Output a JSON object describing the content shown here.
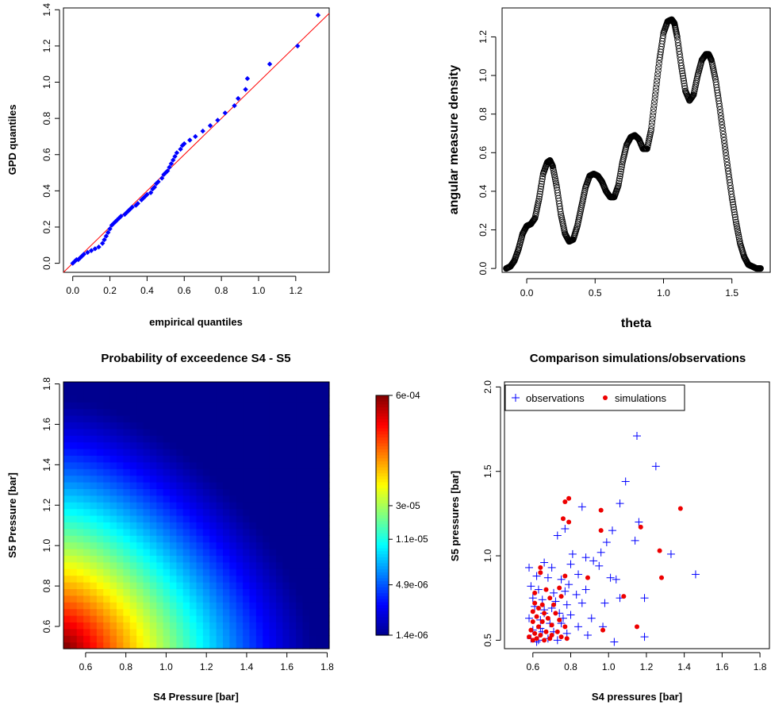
{
  "chart_data": [
    {
      "type": "scatter",
      "title": "",
      "xlabel": "empirical quantiles",
      "ylabel": "GPD quantiles",
      "xlim": [
        -0.05,
        1.38
      ],
      "ylim": [
        -0.05,
        1.41
      ],
      "x_ticks": [
        "0.0",
        "0.2",
        "0.4",
        "0.6",
        "0.8",
        "1.0",
        "1.2"
      ],
      "y_ticks": [
        "0.0",
        "0.2",
        "0.4",
        "0.6",
        "0.8",
        "1.0",
        "1.2",
        "1.4"
      ],
      "reference_line": {
        "slope": 1,
        "intercept": 0,
        "color": "#ff0000"
      },
      "point_color": "#0000ff",
      "points": [
        [
          0.0,
          0.0
        ],
        [
          0.01,
          0.01
        ],
        [
          0.02,
          0.02
        ],
        [
          0.03,
          0.02
        ],
        [
          0.04,
          0.03
        ],
        [
          0.05,
          0.04
        ],
        [
          0.06,
          0.05
        ],
        [
          0.08,
          0.06
        ],
        [
          0.1,
          0.07
        ],
        [
          0.12,
          0.08
        ],
        [
          0.14,
          0.09
        ],
        [
          0.16,
          0.11
        ],
        [
          0.17,
          0.13
        ],
        [
          0.18,
          0.15
        ],
        [
          0.19,
          0.17
        ],
        [
          0.2,
          0.19
        ],
        [
          0.21,
          0.21
        ],
        [
          0.22,
          0.22
        ],
        [
          0.23,
          0.23
        ],
        [
          0.24,
          0.24
        ],
        [
          0.25,
          0.25
        ],
        [
          0.26,
          0.26
        ],
        [
          0.28,
          0.27
        ],
        [
          0.29,
          0.28
        ],
        [
          0.3,
          0.29
        ],
        [
          0.31,
          0.3
        ],
        [
          0.32,
          0.31
        ],
        [
          0.34,
          0.32
        ],
        [
          0.35,
          0.33
        ],
        [
          0.37,
          0.35
        ],
        [
          0.38,
          0.36
        ],
        [
          0.39,
          0.37
        ],
        [
          0.4,
          0.38
        ],
        [
          0.42,
          0.39
        ],
        [
          0.43,
          0.41
        ],
        [
          0.44,
          0.42
        ],
        [
          0.45,
          0.44
        ],
        [
          0.46,
          0.45
        ],
        [
          0.48,
          0.47
        ],
        [
          0.49,
          0.49
        ],
        [
          0.5,
          0.5
        ],
        [
          0.51,
          0.51
        ],
        [
          0.52,
          0.53
        ],
        [
          0.53,
          0.55
        ],
        [
          0.54,
          0.57
        ],
        [
          0.55,
          0.59
        ],
        [
          0.56,
          0.61
        ],
        [
          0.58,
          0.63
        ],
        [
          0.59,
          0.65
        ],
        [
          0.6,
          0.66
        ],
        [
          0.63,
          0.68
        ],
        [
          0.66,
          0.7
        ],
        [
          0.7,
          0.73
        ],
        [
          0.74,
          0.76
        ],
        [
          0.78,
          0.79
        ],
        [
          0.82,
          0.83
        ],
        [
          0.87,
          0.87
        ],
        [
          0.89,
          0.91
        ],
        [
          0.93,
          0.96
        ],
        [
          0.94,
          1.02
        ],
        [
          1.06,
          1.1
        ],
        [
          1.21,
          1.2
        ],
        [
          1.32,
          1.37
        ]
      ]
    },
    {
      "type": "line",
      "title": "",
      "xlabel": "theta",
      "ylabel": "angular measure density",
      "xlim": [
        -0.18,
        1.78
      ],
      "ylim": [
        -0.02,
        1.35
      ],
      "x_ticks": [
        "0.0",
        "0.5",
        "1.0",
        "1.5"
      ],
      "y_ticks": [
        "0.0",
        "0.2",
        "0.4",
        "0.6",
        "0.8",
        "1.0",
        "1.2"
      ],
      "marker": "open-circle",
      "x": [
        -0.15,
        -0.12,
        -0.09,
        -0.06,
        -0.03,
        0.0,
        0.03,
        0.06,
        0.09,
        0.12,
        0.15,
        0.17,
        0.19,
        0.22,
        0.25,
        0.28,
        0.31,
        0.34,
        0.37,
        0.4,
        0.43,
        0.46,
        0.49,
        0.52,
        0.55,
        0.58,
        0.61,
        0.64,
        0.67,
        0.7,
        0.73,
        0.76,
        0.79,
        0.82,
        0.85,
        0.88,
        0.91,
        0.94,
        0.97,
        1.0,
        1.03,
        1.06,
        1.08,
        1.1,
        1.13,
        1.16,
        1.19,
        1.22,
        1.25,
        1.28,
        1.31,
        1.33,
        1.35,
        1.38,
        1.41,
        1.44,
        1.47,
        1.5,
        1.53,
        1.56,
        1.59,
        1.62,
        1.65,
        1.68,
        1.71
      ],
      "y": [
        0.0,
        0.01,
        0.04,
        0.1,
        0.18,
        0.22,
        0.23,
        0.26,
        0.36,
        0.49,
        0.55,
        0.56,
        0.53,
        0.42,
        0.28,
        0.18,
        0.14,
        0.15,
        0.22,
        0.32,
        0.42,
        0.48,
        0.49,
        0.48,
        0.45,
        0.4,
        0.37,
        0.37,
        0.43,
        0.55,
        0.64,
        0.68,
        0.69,
        0.67,
        0.62,
        0.62,
        0.72,
        0.9,
        1.08,
        1.22,
        1.28,
        1.29,
        1.27,
        1.2,
        1.05,
        0.92,
        0.87,
        0.9,
        1.0,
        1.08,
        1.11,
        1.11,
        1.08,
        0.98,
        0.84,
        0.68,
        0.52,
        0.37,
        0.24,
        0.13,
        0.06,
        0.02,
        0.01,
        0.0,
        0.0
      ]
    },
    {
      "type": "heatmap",
      "title": "Probability of exceedence S4 - S5",
      "xlabel": "S4 Pressure [bar]",
      "ylabel": "S5 Pressure [bar]",
      "xlim": [
        0.49,
        1.81
      ],
      "ylim": [
        0.49,
        1.81
      ],
      "x_ticks": [
        "0.6",
        "0.8",
        "1.0",
        "1.2",
        "1.4",
        "1.6",
        "1.8"
      ],
      "y_ticks": [
        "0.6",
        "0.8",
        "1.0",
        "1.2",
        "1.4",
        "1.6",
        "1.8"
      ],
      "colorbar": {
        "tick_labels": [
          "6e-04",
          "3e-05",
          "1.1e-05",
          "4.9e-06",
          "1.4e-06"
        ],
        "tick_fracs": [
          1.0,
          0.54,
          0.4,
          0.21,
          0.0
        ],
        "colors": [
          "#00008f",
          "#0000ff",
          "#0080ff",
          "#00ffff",
          "#80ff80",
          "#ffff00",
          "#ff8000",
          "#ff0000",
          "#800000"
        ]
      },
      "grid_size": 40
    },
    {
      "type": "scatter",
      "title": "Comparison simulations/observations",
      "xlabel": "S4 pressures [bar]",
      "ylabel": "S5 pressures [bar]",
      "xlim": [
        0.45,
        1.85
      ],
      "ylim": [
        0.45,
        2.03
      ],
      "x_ticks": [
        "0.6",
        "0.8",
        "1.0",
        "1.2",
        "1.4",
        "1.6",
        "1.8"
      ],
      "y_ticks": [
        "0.5",
        "1.0",
        "1.5",
        "2.0"
      ],
      "legend": {
        "position": "top-left",
        "entries": [
          "observations",
          "simulations"
        ]
      },
      "series": [
        {
          "name": "observations",
          "marker": "plus",
          "color": "#0000ff",
          "points": [
            [
              1.15,
              1.71
            ],
            [
              1.25,
              1.53
            ],
            [
              1.09,
              1.44
            ],
            [
              1.06,
              1.31
            ],
            [
              0.86,
              1.29
            ],
            [
              1.16,
              1.2
            ],
            [
              0.77,
              1.16
            ],
            [
              1.02,
              1.15
            ],
            [
              0.73,
              1.12
            ],
            [
              1.14,
              1.09
            ],
            [
              0.99,
              1.08
            ],
            [
              0.96,
              1.02
            ],
            [
              0.81,
              1.01
            ],
            [
              1.33,
              1.01
            ],
            [
              1.46,
              0.89
            ],
            [
              0.58,
              0.93
            ],
            [
              0.66,
              0.96
            ],
            [
              0.7,
              0.93
            ],
            [
              0.8,
              0.95
            ],
            [
              0.88,
              0.99
            ],
            [
              0.92,
              0.97
            ],
            [
              0.95,
              0.94
            ],
            [
              1.01,
              0.87
            ],
            [
              1.04,
              0.86
            ],
            [
              0.62,
              0.88
            ],
            [
              0.68,
              0.87
            ],
            [
              0.75,
              0.86
            ],
            [
              0.84,
              0.89
            ],
            [
              0.79,
              0.83
            ],
            [
              0.59,
              0.82
            ],
            [
              0.63,
              0.8
            ],
            [
              0.71,
              0.78
            ],
            [
              0.77,
              0.79
            ],
            [
              0.83,
              0.77
            ],
            [
              0.88,
              0.8
            ],
            [
              0.6,
              0.75
            ],
            [
              0.65,
              0.74
            ],
            [
              0.72,
              0.73
            ],
            [
              0.78,
              0.71
            ],
            [
              0.86,
              0.72
            ],
            [
              0.98,
              0.72
            ],
            [
              1.06,
              0.75
            ],
            [
              1.19,
              0.75
            ],
            [
              0.61,
              0.7
            ],
            [
              0.66,
              0.68
            ],
            [
              0.74,
              0.66
            ],
            [
              0.8,
              0.65
            ],
            [
              0.91,
              0.63
            ],
            [
              0.58,
              0.63
            ],
            [
              0.64,
              0.62
            ],
            [
              0.69,
              0.6
            ],
            [
              0.75,
              0.6
            ],
            [
              0.84,
              0.58
            ],
            [
              0.97,
              0.58
            ],
            [
              0.6,
              0.56
            ],
            [
              0.65,
              0.55
            ],
            [
              0.71,
              0.55
            ],
            [
              0.78,
              0.54
            ],
            [
              0.89,
              0.53
            ],
            [
              1.19,
              0.52
            ],
            [
              0.59,
              0.51
            ],
            [
              0.63,
              0.5
            ],
            [
              0.68,
              0.51
            ],
            [
              0.73,
              0.5
            ],
            [
              1.03,
              0.49
            ],
            [
              0.62,
              0.49
            ],
            [
              0.66,
              0.66
            ],
            [
              0.7,
              0.69
            ],
            [
              0.64,
              0.57
            ],
            [
              0.76,
              0.63
            ]
          ]
        },
        {
          "name": "simulations",
          "marker": "filled-circle",
          "color": "#ee0000",
          "points": [
            [
              0.79,
              1.34
            ],
            [
              0.77,
              1.32
            ],
            [
              1.38,
              1.28
            ],
            [
              0.96,
              1.27
            ],
            [
              0.76,
              1.22
            ],
            [
              0.79,
              1.2
            ],
            [
              1.17,
              1.17
            ],
            [
              0.96,
              1.15
            ],
            [
              1.27,
              1.03
            ],
            [
              0.64,
              0.93
            ],
            [
              0.64,
              0.9
            ],
            [
              0.77,
              0.88
            ],
            [
              0.89,
              0.87
            ],
            [
              1.28,
              0.87
            ],
            [
              0.74,
              0.81
            ],
            [
              0.67,
              0.8
            ],
            [
              0.61,
              0.78
            ],
            [
              0.75,
              0.76
            ],
            [
              1.08,
              0.76
            ],
            [
              0.69,
              0.75
            ],
            [
              0.61,
              0.72
            ],
            [
              0.65,
              0.71
            ],
            [
              0.71,
              0.71
            ],
            [
              0.63,
              0.69
            ],
            [
              0.6,
              0.67
            ],
            [
              0.66,
              0.66
            ],
            [
              0.72,
              0.66
            ],
            [
              0.62,
              0.64
            ],
            [
              0.68,
              0.63
            ],
            [
              0.74,
              0.62
            ],
            [
              0.6,
              0.61
            ],
            [
              0.65,
              0.61
            ],
            [
              0.7,
              0.59
            ],
            [
              0.77,
              0.58
            ],
            [
              0.63,
              0.58
            ],
            [
              0.59,
              0.56
            ],
            [
              0.67,
              0.55
            ],
            [
              0.73,
              0.55
            ],
            [
              0.97,
              0.56
            ],
            [
              1.15,
              0.58
            ],
            [
              0.61,
              0.54
            ],
            [
              0.64,
              0.53
            ],
            [
              0.7,
              0.53
            ],
            [
              0.75,
              0.52
            ],
            [
              0.58,
              0.52
            ],
            [
              0.62,
              0.51
            ],
            [
              0.66,
              0.5
            ],
            [
              0.6,
              0.5
            ],
            [
              0.69,
              0.51
            ],
            [
              0.78,
              0.51
            ]
          ]
        }
      ]
    }
  ]
}
